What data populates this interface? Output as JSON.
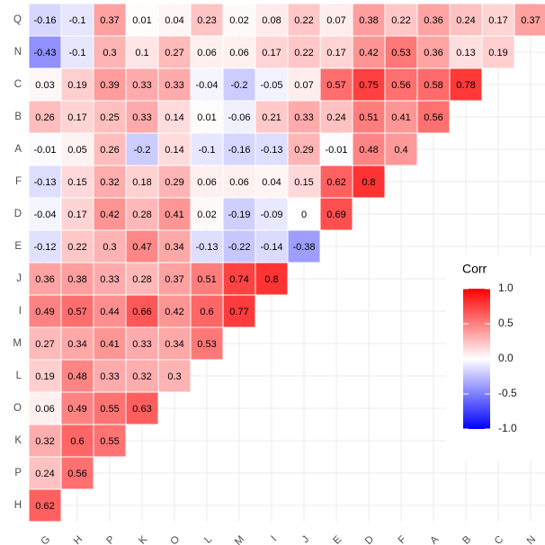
{
  "chart_data": {
    "type": "heatmap",
    "x_categories": [
      "G",
      "H",
      "P",
      "K",
      "O",
      "L",
      "M",
      "I",
      "J",
      "E",
      "D",
      "F",
      "A",
      "B",
      "C",
      "N"
    ],
    "y_categories": [
      "Q",
      "N",
      "C",
      "B",
      "A",
      "F",
      "D",
      "E",
      "J",
      "I",
      "M",
      "L",
      "O",
      "K",
      "P",
      "H"
    ],
    "values": [
      [
        -0.16,
        -0.1,
        0.37,
        0.01,
        0.04,
        0.23,
        0.02,
        0.08,
        0.22,
        0.07,
        0.38,
        0.22,
        0.36,
        0.24,
        0.17,
        0.37
      ],
      [
        -0.43,
        -0.1,
        0.3,
        0.1,
        0.27,
        0.06,
        0.06,
        0.17,
        0.22,
        0.17,
        0.42,
        0.53,
        0.36,
        0.13,
        0.19
      ],
      [
        0.03,
        0.19,
        0.39,
        0.33,
        0.33,
        -0.04,
        -0.2,
        -0.05,
        0.07,
        0.57,
        0.75,
        0.56,
        0.58,
        0.78
      ],
      [
        0.26,
        0.17,
        0.25,
        0.33,
        0.14,
        0.01,
        -0.06,
        0.21,
        0.33,
        0.24,
        0.51,
        0.41,
        0.56
      ],
      [
        -0.01,
        0.05,
        0.26,
        -0.2,
        0.14,
        -0.1,
        -0.16,
        -0.13,
        0.29,
        -0.01,
        0.48,
        0.4
      ],
      [
        -0.13,
        0.15,
        0.32,
        0.18,
        0.29,
        0.06,
        0.06,
        0.04,
        0.15,
        0.62,
        0.8
      ],
      [
        -0.04,
        0.17,
        0.42,
        0.28,
        0.41,
        0.02,
        -0.19,
        -0.09,
        0,
        0.69
      ],
      [
        -0.12,
        0.22,
        0.3,
        0.47,
        0.34,
        -0.13,
        -0.22,
        -0.14,
        -0.38
      ],
      [
        0.36,
        0.38,
        0.33,
        0.28,
        0.37,
        0.51,
        0.74,
        0.8
      ],
      [
        0.49,
        0.57,
        0.44,
        0.66,
        0.42,
        0.6,
        0.77
      ],
      [
        0.27,
        0.34,
        0.41,
        0.33,
        0.34,
        0.53
      ],
      [
        0.19,
        0.48,
        0.33,
        0.32,
        0.3
      ],
      [
        0.06,
        0.49,
        0.55,
        0.63
      ],
      [
        0.32,
        0.6,
        0.55
      ],
      [
        0.24,
        0.56
      ],
      [
        0.62
      ]
    ],
    "colors": {
      "low": "#0000ff",
      "mid": "#ffffff",
      "high": "#ff0000"
    },
    "legend_title": "Corr",
    "clim": [
      -1,
      1
    ],
    "cticks": [
      {
        "value": 1,
        "label": "1.0"
      },
      0.5,
      {
        "value": 0,
        "label": "0.0"
      },
      -0.5,
      {
        "value": -1,
        "label": "-1.0"
      }
    ],
    "grid": true
  }
}
